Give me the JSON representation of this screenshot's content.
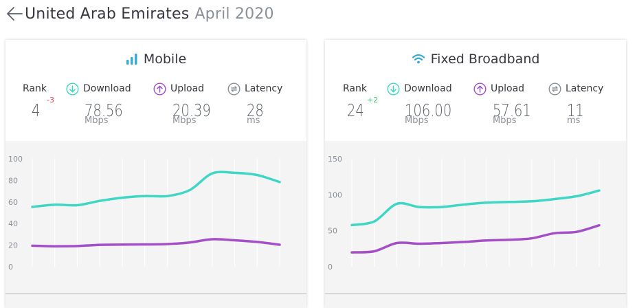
{
  "header": {
    "country": "United Arab Emirates",
    "date": "April 2020"
  },
  "colors": {
    "download": "#3fd6c6",
    "upload": "#a44fc7",
    "latency": "#8a8f98",
    "accent_icon": "#3aa9d8",
    "rank_down": "#e0445e",
    "rank_up": "#3dc46a"
  },
  "mobile": {
    "title": "Mobile",
    "icon": "signal-bars-icon",
    "rank_label": "Rank",
    "rank": "4",
    "rank_change": "-3",
    "download_label": "Download",
    "download": "78.56",
    "download_unit": "Mbps",
    "upload_label": "Upload",
    "upload": "20.39",
    "upload_unit": "Mbps",
    "latency_label": "Latency",
    "latency": "28",
    "latency_unit": "ms"
  },
  "fixed": {
    "title": "Fixed Broadband",
    "icon": "wifi-icon",
    "rank_label": "Rank",
    "rank": "24",
    "rank_change": "+2",
    "download_label": "Download",
    "download": "106.00",
    "download_unit": "Mbps",
    "upload_label": "Upload",
    "upload": "57.61",
    "upload_unit": "Mbps",
    "latency_label": "Latency",
    "latency": "11",
    "latency_unit": "ms"
  },
  "chart_data": [
    {
      "type": "line",
      "title": "",
      "ylim": [
        0,
        100
      ],
      "yticks": [
        "0",
        "20",
        "40",
        "60",
        "80",
        "100"
      ],
      "x": [
        1,
        2,
        3,
        4,
        5,
        6,
        7,
        8,
        9,
        10,
        11,
        12
      ],
      "grid": "vertical",
      "series": [
        {
          "name": "Download",
          "color": "#3fd6c6",
          "values": [
            55.5,
            57.5,
            57,
            61,
            64,
            65.5,
            65.5,
            71,
            86.5,
            87,
            85,
            78.5
          ]
        },
        {
          "name": "Upload",
          "color": "#a44fc7",
          "values": [
            19.5,
            19,
            19.2,
            20.3,
            20.5,
            20.7,
            21,
            22.5,
            25.5,
            24.5,
            23,
            20.4
          ]
        }
      ]
    },
    {
      "type": "line",
      "title": "",
      "ylim": [
        0,
        150
      ],
      "yticks": [
        "0",
        "50",
        "100",
        "150"
      ],
      "x": [
        1,
        2,
        3,
        4,
        5,
        6,
        7,
        8,
        9,
        10,
        11,
        12
      ],
      "grid": "vertical",
      "series": [
        {
          "name": "Download",
          "color": "#3fd6c6",
          "values": [
            58,
            63,
            87.5,
            83,
            83,
            86.5,
            89,
            90,
            91,
            94,
            98,
            106
          ]
        },
        {
          "name": "Upload",
          "color": "#a44fc7",
          "values": [
            20,
            21.5,
            33,
            32,
            33,
            34.5,
            36.5,
            37.5,
            39.5,
            46.5,
            48.5,
            57.6
          ]
        }
      ]
    }
  ]
}
